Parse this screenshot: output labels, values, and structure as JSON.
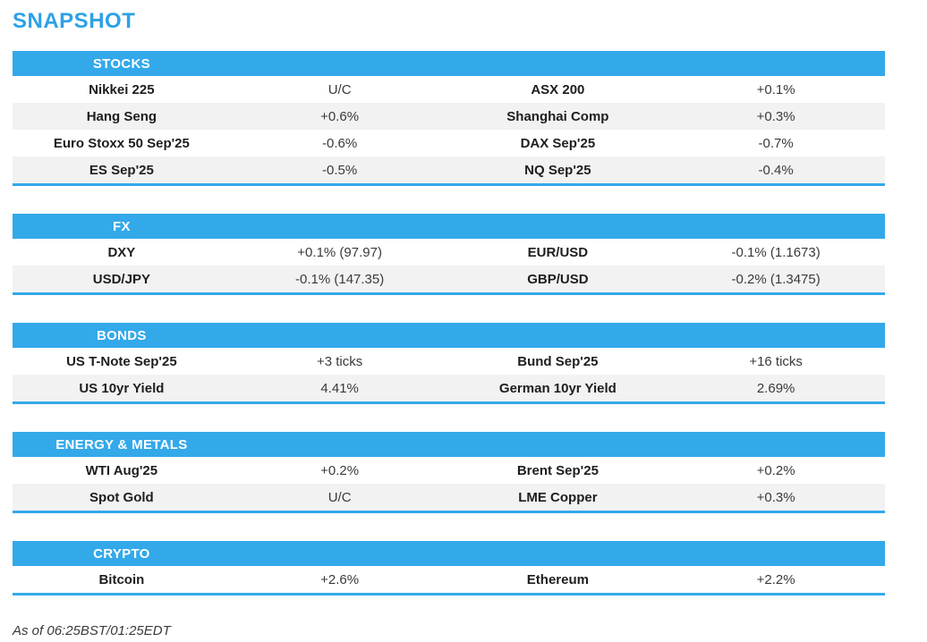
{
  "page": {
    "title": "SNAPSHOT",
    "footer": "As of 06:25BST/01:25EDT"
  },
  "colors": {
    "accent": "#33a9ea",
    "title": "#2ea1e6",
    "row_alt": "#f2f2f2",
    "label": "#1e1e1e",
    "value": "#3a3a3a"
  },
  "sections": [
    {
      "header": "STOCKS",
      "rows": [
        {
          "l1": "Nikkei 225",
          "v1": "U/C",
          "l2": "ASX 200",
          "v2": "+0.1%"
        },
        {
          "l1": "Hang Seng",
          "v1": "+0.6%",
          "l2": "Shanghai Comp",
          "v2": "+0.3%"
        },
        {
          "l1": "Euro Stoxx 50 Sep'25",
          "v1": "-0.6%",
          "l2": "DAX Sep'25",
          "v2": "-0.7%"
        },
        {
          "l1": "ES Sep'25",
          "v1": "-0.5%",
          "l2": "NQ Sep'25",
          "v2": "-0.4%"
        }
      ]
    },
    {
      "header": "FX",
      "rows": [
        {
          "l1": "DXY",
          "v1": "+0.1% (97.97)",
          "l2": "EUR/USD",
          "v2": "-0.1% (1.1673)"
        },
        {
          "l1": "USD/JPY",
          "v1": "-0.1% (147.35)",
          "l2": "GBP/USD",
          "v2": "-0.2% (1.3475)"
        }
      ]
    },
    {
      "header": "BONDS",
      "rows": [
        {
          "l1": "US T-Note Sep'25",
          "v1": "+3 ticks",
          "l2": "Bund Sep'25",
          "v2": "+16 ticks"
        },
        {
          "l1": "US 10yr Yield",
          "v1": "4.41%",
          "l2": "German 10yr Yield",
          "v2": "2.69%"
        }
      ]
    },
    {
      "header": "ENERGY & METALS",
      "rows": [
        {
          "l1": "WTI Aug'25",
          "v1": "+0.2%",
          "l2": "Brent Sep'25",
          "v2": "+0.2%"
        },
        {
          "l1": "Spot Gold",
          "v1": "U/C",
          "l2": "LME Copper",
          "v2": "+0.3%"
        }
      ]
    },
    {
      "header": "CRYPTO",
      "rows": [
        {
          "l1": "Bitcoin",
          "v1": "+2.6%",
          "l2": "Ethereum",
          "v2": "+2.2%"
        }
      ]
    }
  ]
}
